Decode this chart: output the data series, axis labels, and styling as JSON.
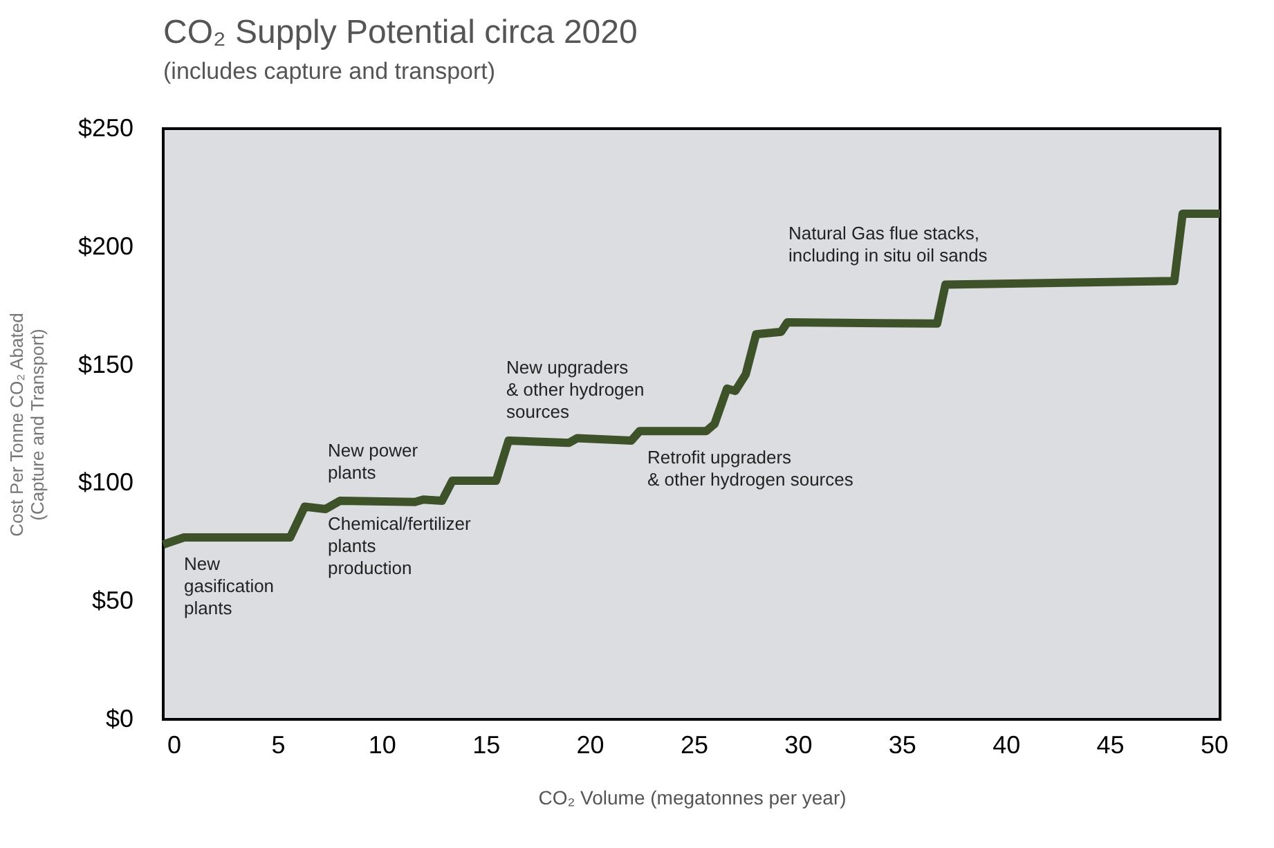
{
  "chart_data": {
    "type": "step",
    "title": "CO₂ Supply Potential circa 2020",
    "subtitle": "(includes capture and transport)",
    "xlabel": "CO₂ Volume (megatonnes per year)",
    "ylabel": "Cost Per Tonne CO₂ Abated\n(Capture  and Transport)",
    "x": [
      -0.5,
      0.5,
      5.6,
      6.3,
      7.3,
      8,
      11.6,
      12,
      12.9,
      13.4,
      15.5,
      16.1,
      19,
      19.4,
      22,
      22.4,
      25.6,
      26,
      26.6,
      27,
      27.5,
      28,
      29.2,
      29.5,
      36.7,
      37.1,
      48.1,
      48.5,
      50.3
    ],
    "series": [
      {
        "color": "#3d5229",
        "values": [
          74,
          77,
          77,
          90,
          89,
          92.5,
          92,
          93,
          92.5,
          101,
          101,
          118,
          117,
          119,
          118,
          122,
          122,
          125,
          140,
          139,
          146,
          163,
          164,
          168,
          167.5,
          184,
          185.5,
          214,
          214
        ]
      }
    ],
    "xlim": [
      -0.5,
      50.3
    ],
    "xticks": [
      0,
      5,
      10,
      15,
      20,
      25,
      30,
      35,
      40,
      45,
      50
    ],
    "ylim": [
      0,
      250
    ],
    "yticks": [
      {
        "value": 0,
        "label": "$0"
      },
      {
        "value": 50,
        "label": "$50"
      },
      {
        "value": 100,
        "label": "$100"
      },
      {
        "value": 150,
        "label": "$150"
      },
      {
        "value": 200,
        "label": "$200"
      },
      {
        "value": 250,
        "label": "$250"
      }
    ],
    "annotations": [
      "New\ngasification\nplants",
      "New power\nplants",
      "Chemical/fertilizer\nplants\nproduction",
      "New upgraders\n& other hydrogen\nsources",
      "Retrofit upgraders\n& other hydrogen sources",
      "Natural Gas flue stacks,\nincluding in situ oil sands"
    ],
    "marker": "none",
    "line_style": "solid"
  }
}
